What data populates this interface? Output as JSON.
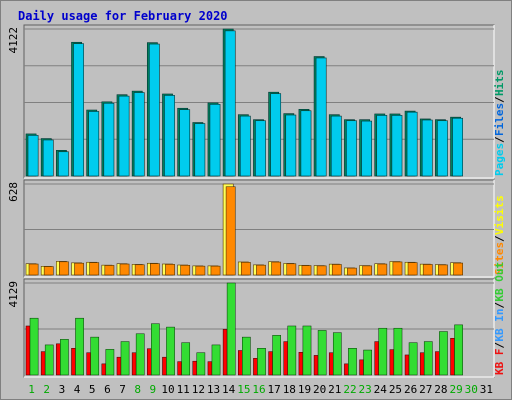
{
  "chart_data": {
    "type": "bar",
    "title": "Daily usage for February 2020",
    "categories": [
      "1",
      "2",
      "3",
      "4",
      "5",
      "6",
      "7",
      "8",
      "9",
      "10",
      "11",
      "12",
      "13",
      "14",
      "15",
      "16",
      "17",
      "18",
      "19",
      "20",
      "21",
      "22",
      "23",
      "24",
      "25",
      "26",
      "27",
      "28",
      "29",
      "30",
      "31"
    ],
    "weekend_days": [
      "1",
      "2",
      "8",
      "9",
      "15",
      "16",
      "22",
      "23",
      "29",
      "30"
    ],
    "panels": [
      {
        "name": "hits-files-pages",
        "ymax_label": "4122",
        "ymax": 4122,
        "legend": [
          {
            "text": "Pages",
            "color": "#00ccee"
          },
          {
            "text": "Files",
            "color": "#0066dd"
          },
          {
            "text": "Hits",
            "color": "#009966"
          }
        ],
        "series": [
          {
            "name": "Hits",
            "color": "#00805c",
            "values": [
              1180,
              1050,
              720,
              3750,
              1850,
              2080,
              2280,
              2380,
              3740,
              2300,
              1900,
              1500,
              2050,
              4122,
              1720,
              1580,
              2350,
              1750,
              1870,
              3350,
              1720,
              1580,
              1580,
              1740,
              1740,
              1820,
              1600,
              1580,
              1650,
              null,
              null
            ]
          },
          {
            "name": "Files",
            "color": "#00ccee",
            "values": [
              1140,
              1010,
              680,
              3710,
              1810,
              2040,
              2240,
              2340,
              3700,
              2260,
              1860,
              1470,
              2010,
              4070,
              1680,
              1550,
              2310,
              1710,
              1830,
              3310,
              1680,
              1550,
              1540,
              1700,
              1700,
              1790,
              1570,
              1550,
              1620,
              null,
              null
            ]
          }
        ]
      },
      {
        "name": "visits-sites",
        "ymax_label": "628",
        "ymax": 628,
        "legend": [
          {
            "text": "Sites",
            "color": "#ff8800"
          },
          {
            "text": "Visits",
            "color": "#ffff00"
          }
        ],
        "series": [
          {
            "name": "Visits",
            "color": "#ffff55",
            "values": [
              78,
              60,
              94,
              84,
              88,
              68,
              78,
              73,
              81,
              76,
              69,
              63,
              63,
              628,
              90,
              70,
              92,
              80,
              67,
              65,
              75,
              49,
              65,
              78,
              93,
              88,
              75,
              72,
              85,
              null,
              null
            ]
          },
          {
            "name": "Sites",
            "color": "#ff8800",
            "values": [
              78,
              60,
              94,
              84,
              88,
              68,
              78,
              73,
              81,
              76,
              69,
              63,
              63,
              628,
              90,
              70,
              92,
              80,
              67,
              65,
              75,
              49,
              65,
              78,
              93,
              88,
              75,
              72,
              85,
              null,
              null
            ]
          }
        ]
      },
      {
        "name": "kbytes",
        "ymax_label": "4129",
        "ymax": 4129,
        "legend": [
          {
            "text": "KB F",
            "color": "#ee1111"
          },
          {
            "text": "KB In",
            "color": "#3399ff"
          },
          {
            "text": "KB Out",
            "color": "#33cc33"
          }
        ],
        "series": [
          {
            "name": "KB F",
            "color": "#ff0000",
            "values": [
              2200,
              1050,
              1400,
              1200,
              1000,
              500,
              800,
              1000,
              1180,
              800,
              600,
              620,
              600,
              2050,
              1100,
              750,
              1050,
              1500,
              1020,
              880,
              1000,
              500,
              680,
              1500,
              1140,
              900,
              1000,
              1050,
              1650,
              null,
              null
            ]
          },
          {
            "name": "KB Out",
            "color": "#33dd33",
            "values": [
              2550,
              1350,
              1600,
              2550,
              1700,
              1150,
              1500,
              1850,
              2300,
              2150,
              1450,
              1000,
              1350,
              4129,
              1700,
              1200,
              1780,
              2200,
              2200,
              2000,
              1900,
              1200,
              1120,
              2100,
              2100,
              1450,
              1500,
              1950,
              2250,
              null,
              null
            ]
          }
        ]
      }
    ],
    "colors": {
      "background": "#c0c0c0",
      "frame": "#ffffff",
      "gridline": "#808080",
      "title": "#0000ff",
      "ylabel": "#000000",
      "day_label": "#000000",
      "weekend_label": "#00aa00"
    }
  }
}
